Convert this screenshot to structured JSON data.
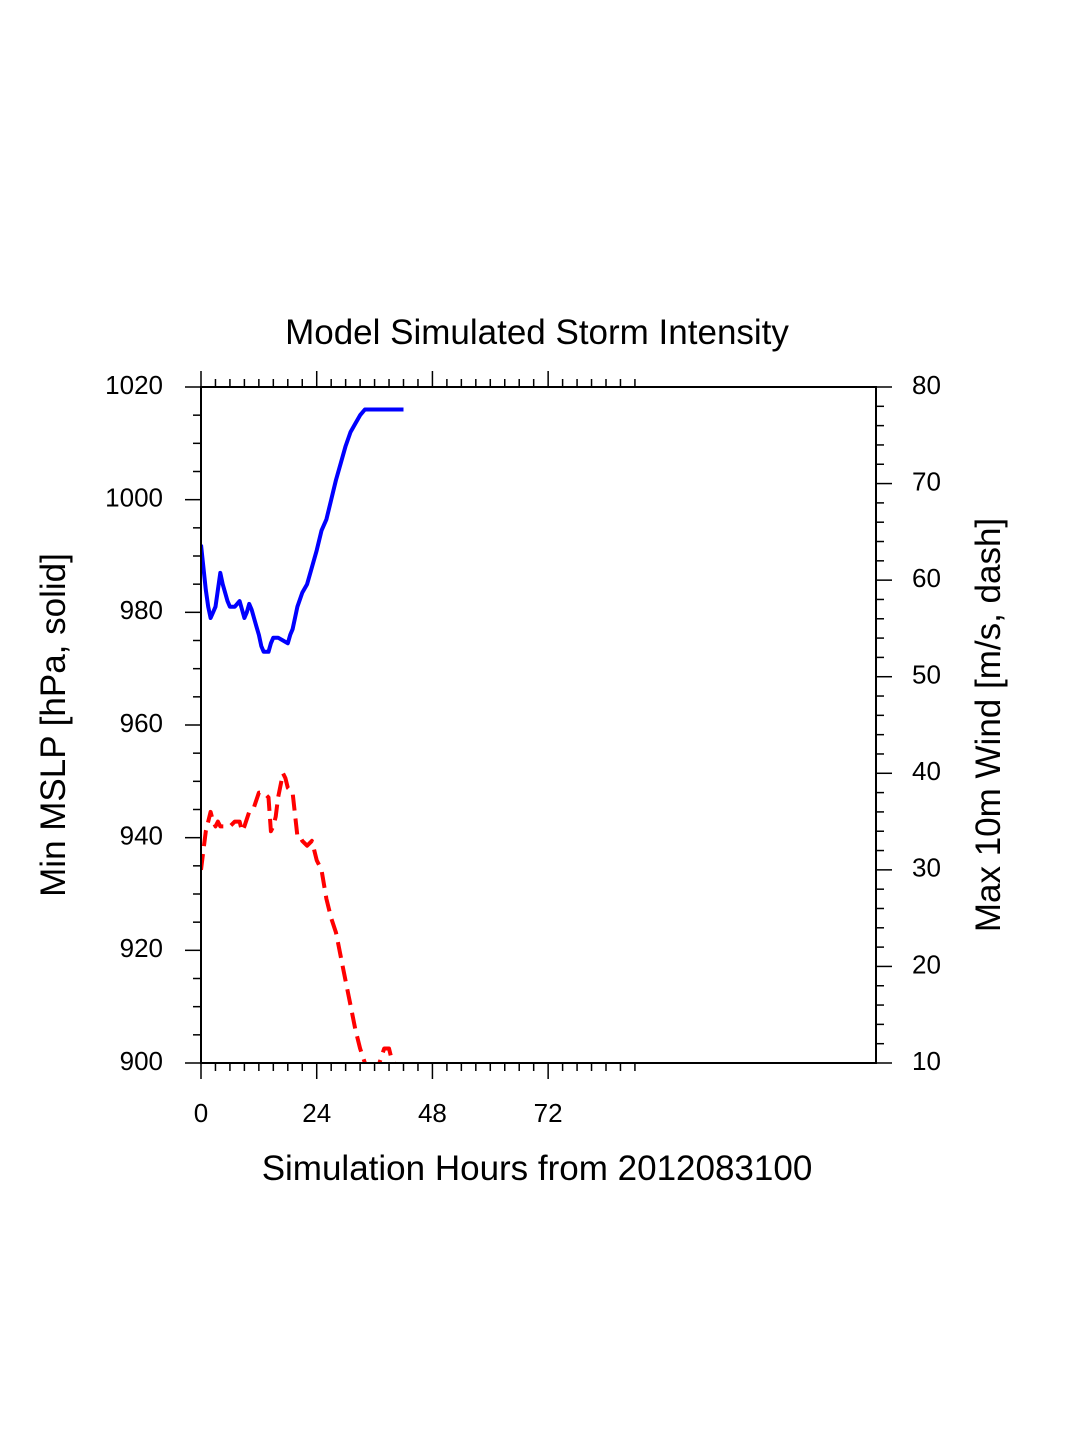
{
  "chart_data": {
    "type": "line",
    "title": "Model Simulated Storm Intensity",
    "xlabel": "Simulation Hours from 2012083100",
    "ylabel_left": "Min MSLP  [hPa, solid]",
    "ylabel_right": "Max 10m Wind  [m/s, dash]",
    "xlim": [
      0,
      140
    ],
    "ylim_left": [
      900,
      1020
    ],
    "ylim_right": [
      10,
      80
    ],
    "x_ticks": [
      0,
      24,
      48,
      72
    ],
    "x_tick_labels": [
      "0",
      "24",
      "48",
      "72"
    ],
    "x_minor_ticks_extent": 91,
    "y_left_ticks": [
      900,
      920,
      940,
      960,
      980,
      1000,
      1020
    ],
    "y_left_tick_labels": [
      "900",
      "920",
      "940",
      "960",
      "980",
      "1000",
      "1020"
    ],
    "y_right_ticks": [
      10,
      20,
      30,
      40,
      50,
      60,
      70,
      80
    ],
    "y_right_tick_labels": [
      "10",
      "20",
      "30",
      "40",
      "50",
      "60",
      "70",
      "80"
    ],
    "series": [
      {
        "name": "Min MSLP",
        "axis": "left",
        "style": "solid",
        "color": "#0000ff",
        "x": [
          0,
          0.5,
          1,
          1.5,
          2,
          2.5,
          3,
          3.5,
          4,
          4.5,
          5,
          5.5,
          6,
          7,
          8,
          8.5,
          9,
          9.5,
          10,
          10.5,
          11,
          11.5,
          12,
          12.5,
          13,
          13.5,
          14,
          14.5,
          15,
          16,
          17,
          18,
          18.5,
          19,
          19.5,
          20,
          21,
          22,
          23,
          24,
          25,
          26,
          27,
          28,
          29,
          30,
          31,
          32,
          33,
          34,
          35,
          36,
          38,
          40,
          42
        ],
        "y": [
          992,
          988,
          984,
          981,
          979,
          980,
          981,
          984,
          987,
          985,
          983.5,
          982,
          981,
          981,
          982,
          980.5,
          979,
          980,
          981.5,
          980.5,
          979,
          977.5,
          976,
          974,
          973,
          973,
          973,
          974.5,
          975.5,
          975.5,
          975,
          974.5,
          976,
          977,
          979,
          981,
          983.5,
          985,
          988,
          991,
          994.5,
          996.5,
          1000,
          1003.5,
          1006.5,
          1009.5,
          1012,
          1013.5,
          1015,
          1016,
          1016,
          1016,
          1016,
          1016,
          1016
        ]
      },
      {
        "name": "Max 10m Wind",
        "axis": "right",
        "style": "dash",
        "color": "#ff0000",
        "x": [
          0,
          0.5,
          1,
          1.5,
          2,
          2.5,
          3,
          3.5,
          4,
          4.5,
          5,
          5.5,
          6,
          7,
          8,
          8.5,
          9,
          10,
          11,
          12,
          13,
          14,
          14.5,
          15,
          15.5,
          16,
          17,
          17.5,
          18,
          19,
          20,
          20.5,
          21,
          22,
          23,
          23.5,
          24,
          25,
          26,
          27,
          28,
          29,
          30,
          31,
          32,
          33,
          34,
          35,
          36,
          37,
          38,
          39,
          39.5,
          40,
          41
        ],
        "y": [
          30,
          32,
          34,
          35,
          36,
          35,
          34.5,
          35,
          34.5,
          34.5,
          34.5,
          34.5,
          34.5,
          35,
          35,
          34,
          34.5,
          36,
          36.5,
          38,
          38,
          37.5,
          34,
          34.5,
          35.5,
          37.5,
          40,
          39.5,
          38.5,
          38,
          33.5,
          33.5,
          33,
          32.5,
          33,
          32,
          31,
          30,
          27,
          25,
          23.5,
          21,
          18.5,
          16,
          13.5,
          11.5,
          10,
          9,
          8.5,
          10,
          11.5,
          11.5,
          10.5,
          10,
          9.5
        ]
      }
    ]
  }
}
